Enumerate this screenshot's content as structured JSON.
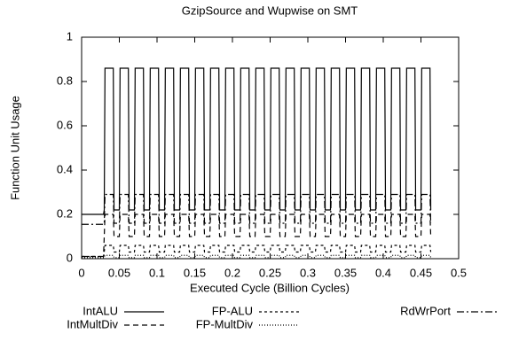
{
  "chart_data": {
    "type": "line",
    "title": "GzipSource and Wupwise on SMT",
    "xlabel": "Executed Cycle (Billion Cycles)",
    "ylabel": "Function Unit Usage",
    "xlim": [
      0,
      0.5
    ],
    "ylim": [
      0,
      1
    ],
    "xticks": [
      0,
      0.05,
      0.1,
      0.15,
      0.2,
      0.25,
      0.3,
      0.35,
      0.4,
      0.45,
      0.5
    ],
    "yticks": [
      0,
      0.2,
      0.4,
      0.6,
      0.8,
      1
    ],
    "x": [
      0,
      0.029,
      0.03,
      0.031,
      0.042,
      0.043,
      0.05,
      0.051,
      0.062,
      0.063,
      0.07,
      0.071,
      0.082,
      0.083,
      0.09,
      0.091,
      0.102,
      0.103,
      0.11,
      0.111,
      0.122,
      0.123,
      0.13,
      0.131,
      0.142,
      0.143,
      0.15,
      0.151,
      0.162,
      0.163,
      0.17,
      0.171,
      0.182,
      0.183,
      0.19,
      0.191,
      0.202,
      0.203,
      0.21,
      0.211,
      0.222,
      0.223,
      0.23,
      0.231,
      0.242,
      0.243,
      0.25,
      0.251,
      0.262,
      0.263,
      0.27,
      0.271,
      0.282,
      0.283,
      0.29,
      0.291,
      0.302,
      0.303,
      0.31,
      0.311,
      0.322,
      0.323,
      0.33,
      0.331,
      0.342,
      0.343,
      0.35,
      0.351,
      0.362,
      0.363,
      0.37,
      0.371,
      0.382,
      0.383,
      0.39,
      0.391,
      0.402,
      0.403,
      0.41,
      0.411,
      0.422,
      0.423,
      0.43,
      0.431,
      0.442,
      0.443,
      0.45,
      0.451,
      0.462,
      0.463
    ],
    "series": [
      {
        "name": "IntALU",
        "color": "#000000",
        "dash": "none",
        "values": [
          0.2,
          0.2,
          0.22,
          0.86,
          0.86,
          0.22,
          0.22,
          0.86,
          0.86,
          0.22,
          0.22,
          0.86,
          0.86,
          0.22,
          0.22,
          0.86,
          0.86,
          0.22,
          0.22,
          0.86,
          0.86,
          0.22,
          0.22,
          0.86,
          0.86,
          0.22,
          0.22,
          0.86,
          0.86,
          0.22,
          0.22,
          0.86,
          0.86,
          0.22,
          0.22,
          0.86,
          0.86,
          0.22,
          0.22,
          0.86,
          0.86,
          0.22,
          0.22,
          0.86,
          0.86,
          0.22,
          0.22,
          0.86,
          0.86,
          0.22,
          0.22,
          0.86,
          0.86,
          0.22,
          0.22,
          0.86,
          0.86,
          0.22,
          0.22,
          0.86,
          0.86,
          0.22,
          0.22,
          0.86,
          0.86,
          0.22,
          0.22,
          0.86,
          0.86,
          0.22,
          0.22,
          0.86,
          0.86,
          0.22,
          0.22,
          0.86,
          0.86,
          0.22,
          0.22,
          0.86,
          0.86,
          0.22,
          0.22,
          0.86,
          0.86,
          0.22,
          0.22,
          0.86,
          0.86,
          0.22
        ]
      },
      {
        "name": "IntMultDiv",
        "color": "#000000",
        "dash": "6,4",
        "values": [
          0.01,
          0.01,
          0.1,
          0.2,
          0.2,
          0.1,
          0.1,
          0.2,
          0.2,
          0.1,
          0.1,
          0.2,
          0.2,
          0.1,
          0.1,
          0.2,
          0.2,
          0.1,
          0.1,
          0.2,
          0.2,
          0.1,
          0.1,
          0.2,
          0.2,
          0.1,
          0.1,
          0.2,
          0.2,
          0.1,
          0.1,
          0.2,
          0.2,
          0.1,
          0.1,
          0.2,
          0.2,
          0.1,
          0.1,
          0.2,
          0.2,
          0.1,
          0.1,
          0.2,
          0.2,
          0.1,
          0.1,
          0.2,
          0.2,
          0.1,
          0.1,
          0.2,
          0.2,
          0.1,
          0.1,
          0.2,
          0.2,
          0.1,
          0.1,
          0.2,
          0.2,
          0.1,
          0.1,
          0.2,
          0.2,
          0.1,
          0.1,
          0.2,
          0.2,
          0.1,
          0.1,
          0.2,
          0.2,
          0.1,
          0.1,
          0.2,
          0.2,
          0.1,
          0.1,
          0.2,
          0.2,
          0.1,
          0.1,
          0.2,
          0.2,
          0.1,
          0.1,
          0.2,
          0.2,
          0.1
        ]
      },
      {
        "name": "FP-ALU",
        "color": "#000000",
        "dash": "3,3",
        "values": [
          0.01,
          0.01,
          0.03,
          0.06,
          0.06,
          0.03,
          0.03,
          0.06,
          0.06,
          0.03,
          0.03,
          0.06,
          0.06,
          0.03,
          0.03,
          0.06,
          0.06,
          0.03,
          0.03,
          0.06,
          0.06,
          0.03,
          0.03,
          0.06,
          0.06,
          0.03,
          0.03,
          0.06,
          0.06,
          0.03,
          0.03,
          0.06,
          0.06,
          0.03,
          0.03,
          0.06,
          0.06,
          0.03,
          0.03,
          0.06,
          0.06,
          0.03,
          0.03,
          0.06,
          0.06,
          0.03,
          0.03,
          0.06,
          0.06,
          0.03,
          0.03,
          0.06,
          0.06,
          0.03,
          0.03,
          0.06,
          0.06,
          0.03,
          0.03,
          0.06,
          0.06,
          0.03,
          0.03,
          0.06,
          0.06,
          0.03,
          0.03,
          0.06,
          0.06,
          0.03,
          0.03,
          0.06,
          0.06,
          0.03,
          0.03,
          0.06,
          0.06,
          0.03,
          0.03,
          0.06,
          0.06,
          0.03,
          0.03,
          0.06,
          0.06,
          0.03,
          0.03,
          0.06,
          0.06,
          0.03
        ]
      },
      {
        "name": "FP-MultDiv",
        "color": "#000000",
        "dash": "1,2",
        "values": [
          0.005,
          0.005,
          0.005,
          0.015,
          0.015,
          0.005,
          0.005,
          0.015,
          0.015,
          0.005,
          0.005,
          0.015,
          0.015,
          0.005,
          0.005,
          0.015,
          0.015,
          0.005,
          0.005,
          0.015,
          0.015,
          0.005,
          0.005,
          0.015,
          0.015,
          0.005,
          0.005,
          0.015,
          0.015,
          0.005,
          0.005,
          0.015,
          0.015,
          0.005,
          0.005,
          0.015,
          0.015,
          0.005,
          0.005,
          0.015,
          0.015,
          0.005,
          0.005,
          0.015,
          0.015,
          0.005,
          0.005,
          0.015,
          0.015,
          0.005,
          0.005,
          0.015,
          0.015,
          0.005,
          0.005,
          0.015,
          0.015,
          0.005,
          0.005,
          0.015,
          0.015,
          0.005,
          0.005,
          0.015,
          0.015,
          0.005,
          0.005,
          0.015,
          0.015,
          0.005,
          0.005,
          0.015,
          0.015,
          0.005,
          0.005,
          0.015,
          0.015,
          0.005,
          0.005,
          0.015,
          0.015,
          0.005,
          0.005,
          0.015,
          0.015,
          0.005,
          0.005,
          0.015,
          0.015,
          0.005
        ]
      },
      {
        "name": "RdWrPort",
        "color": "#000000",
        "dash": "8,3,2,3",
        "values": [
          0.155,
          0.155,
          0.16,
          0.29,
          0.29,
          0.16,
          0.16,
          0.29,
          0.29,
          0.16,
          0.16,
          0.29,
          0.29,
          0.16,
          0.16,
          0.29,
          0.29,
          0.16,
          0.16,
          0.29,
          0.29,
          0.16,
          0.16,
          0.29,
          0.29,
          0.16,
          0.16,
          0.29,
          0.29,
          0.16,
          0.16,
          0.29,
          0.29,
          0.16,
          0.16,
          0.29,
          0.29,
          0.16,
          0.16,
          0.29,
          0.29,
          0.16,
          0.16,
          0.29,
          0.29,
          0.16,
          0.16,
          0.29,
          0.29,
          0.16,
          0.16,
          0.29,
          0.29,
          0.16,
          0.16,
          0.29,
          0.29,
          0.16,
          0.16,
          0.29,
          0.29,
          0.16,
          0.16,
          0.29,
          0.29,
          0.16,
          0.16,
          0.29,
          0.29,
          0.16,
          0.16,
          0.29,
          0.29,
          0.16,
          0.16,
          0.29,
          0.29,
          0.16,
          0.16,
          0.29,
          0.29,
          0.16,
          0.16,
          0.29,
          0.29,
          0.16,
          0.16,
          0.29,
          0.29,
          0.16
        ]
      }
    ]
  }
}
